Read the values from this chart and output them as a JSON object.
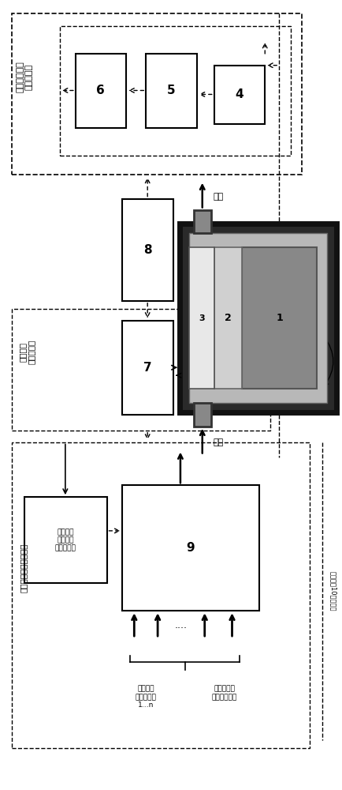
{
  "bg_color": "#ffffff",
  "fig_w": 4.34,
  "fig_h": 10.0,
  "dpi": 100,
  "label_integrated": "集成底座（伽\n马能谱仪）",
  "label_spectrum": "全尺度米\n谱数据分析",
  "label_hydraulic": "液压控制\n（用于多\n入口设置）",
  "label_mux": "进项：入口多路复用器",
  "label_inputs": "来自加工\n单元的入口\n1…n",
  "label_pure_water": "用于背景测\n量的纯水入口",
  "label_cobalt": "钉屏蔽＞10毫米厕度",
  "label_outlet": "出口",
  "label_inlet": "入口"
}
